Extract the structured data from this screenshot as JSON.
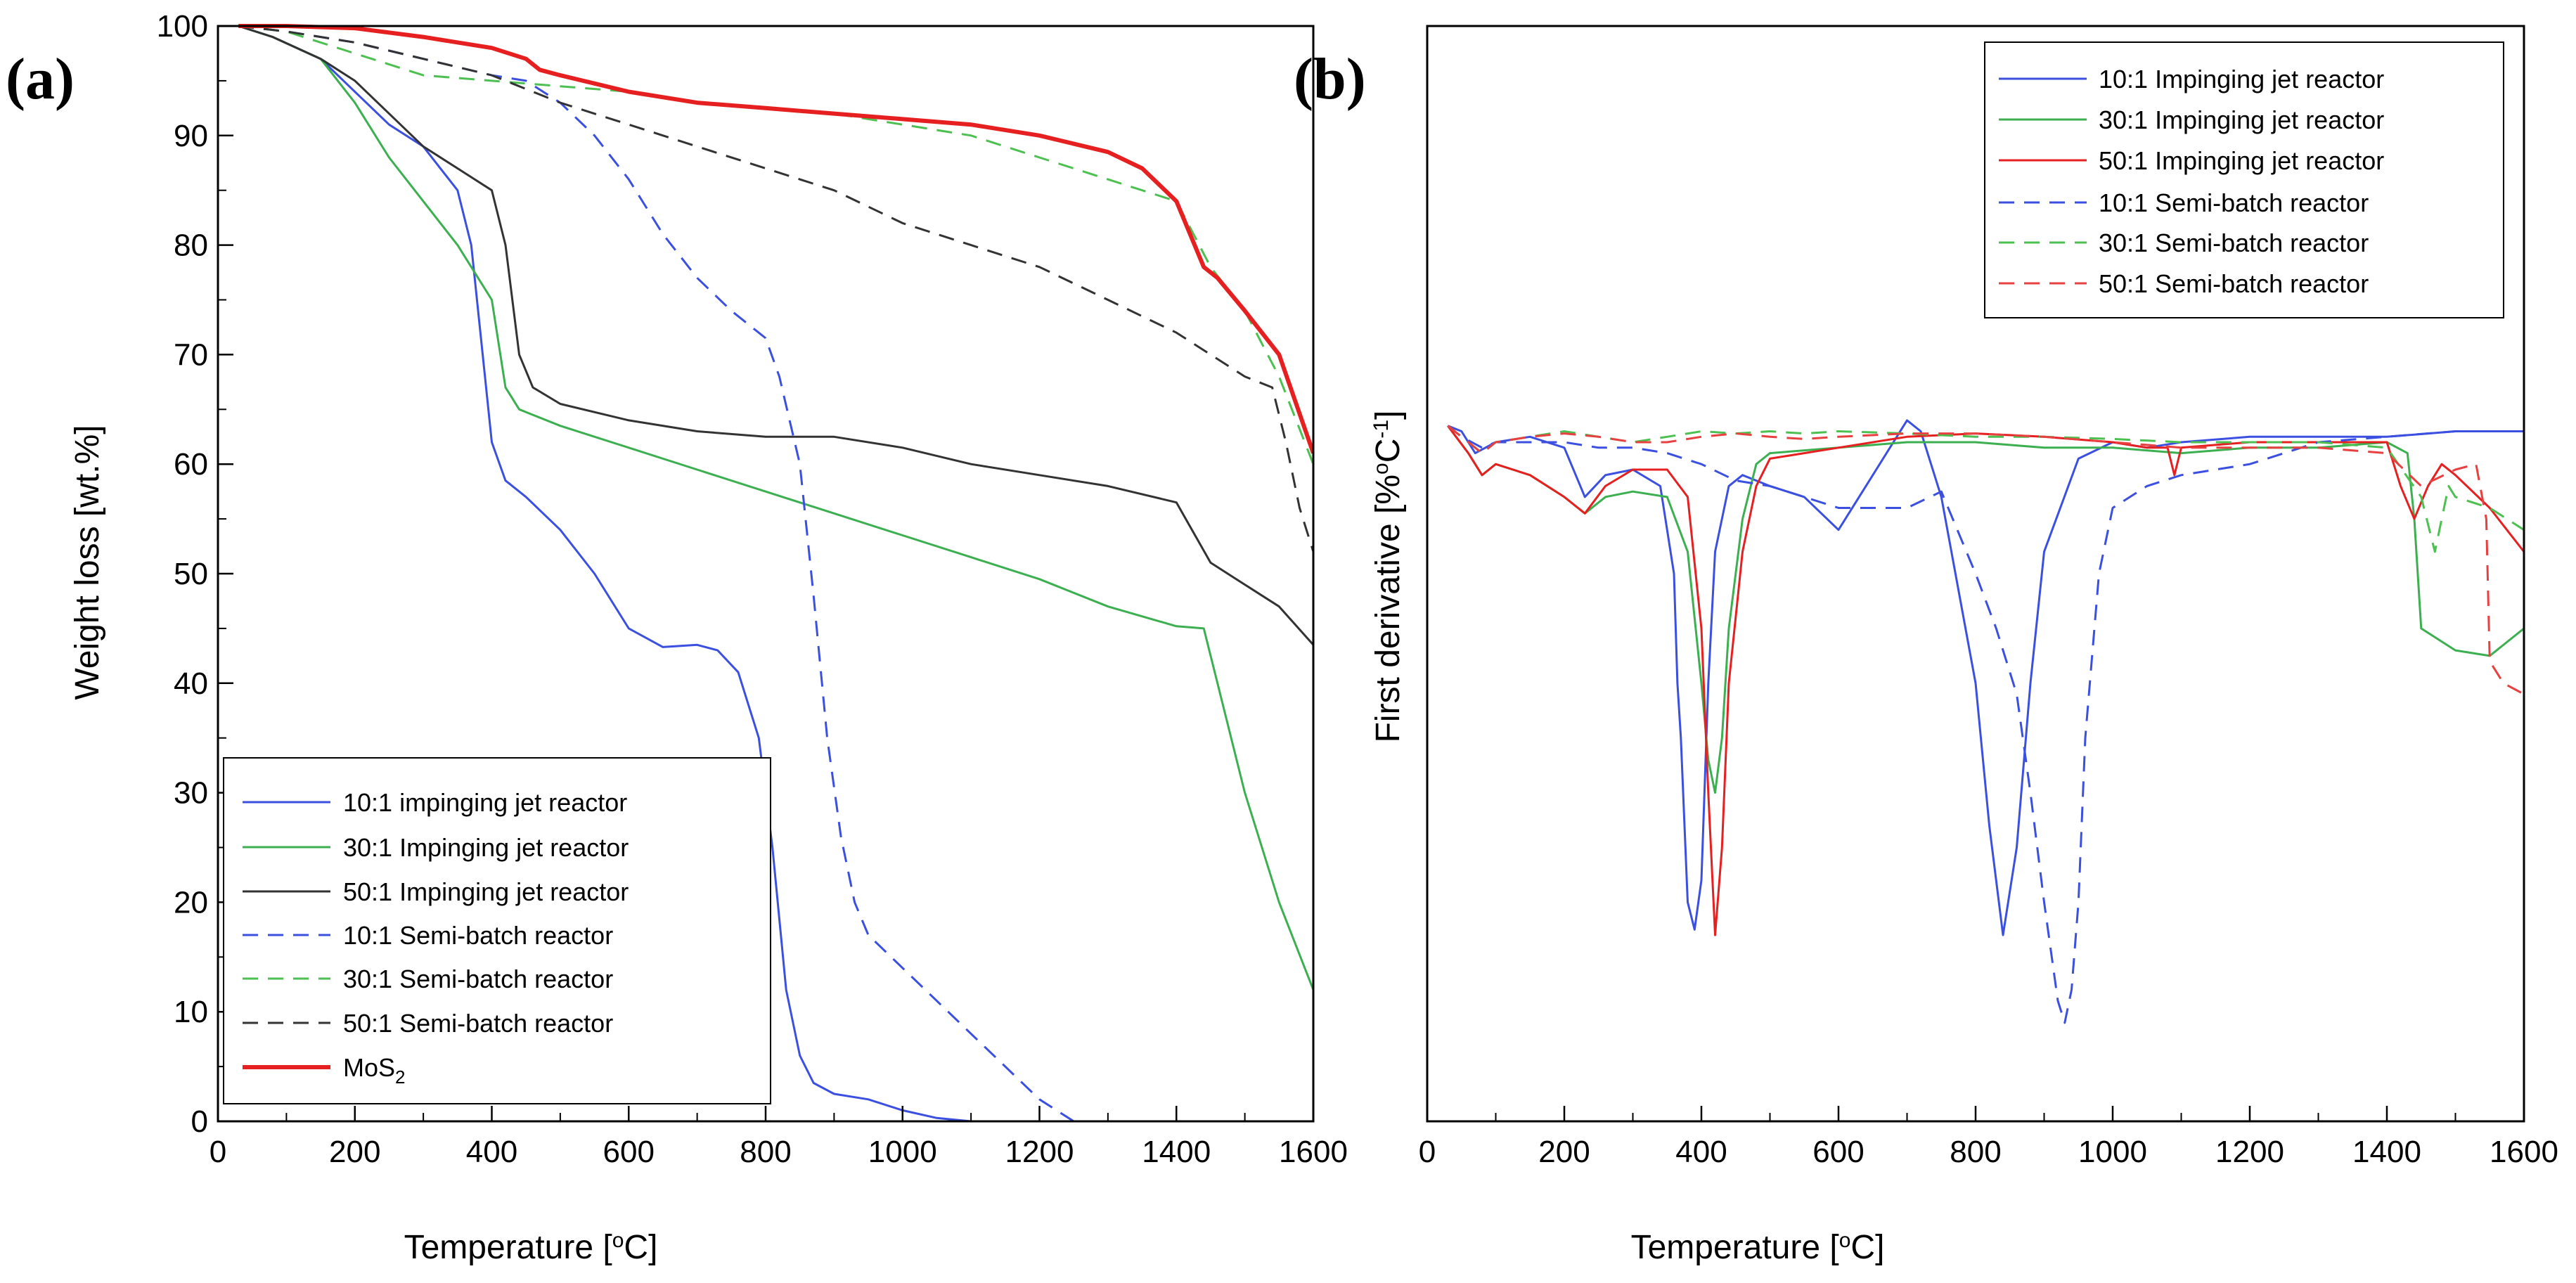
{
  "chart_data": [
    {
      "panel": "(a)",
      "type": "line",
      "title": "",
      "xlabel": "Temperature [",
      "xlabel_sup": "o",
      "xlabel_end": "C]",
      "ylabel": "Weight loss [wt.%]",
      "xlim": [
        0,
        1600
      ],
      "ylim": [
        0,
        100
      ],
      "xticks": [
        0,
        200,
        400,
        600,
        800,
        1000,
        1200,
        1400,
        1600
      ],
      "yticks": [
        0,
        10,
        20,
        30,
        40,
        50,
        60,
        70,
        80,
        90,
        100
      ],
      "legend_position": "bottom-left",
      "series": [
        {
          "name": "10:1 impinging jet reactor",
          "color": "#3b4fe0",
          "dash": "solid",
          "x": [
            30,
            80,
            150,
            200,
            250,
            300,
            350,
            370,
            390,
            400,
            420,
            450,
            500,
            550,
            600,
            650,
            700,
            730,
            760,
            790,
            810,
            830,
            850,
            870,
            900,
            950,
            1000,
            1050,
            1100,
            1200,
            1300,
            1400,
            1500,
            1600
          ],
          "y": [
            100,
            99,
            97,
            94,
            91,
            89,
            85,
            80,
            68,
            62,
            58.5,
            57,
            54,
            50,
            45,
            43.3,
            43.5,
            43,
            41,
            35,
            25,
            12,
            6,
            3.5,
            2.5,
            2,
            1,
            0.3,
            0,
            0,
            0,
            0,
            0,
            0
          ]
        },
        {
          "name": "30:1 Impinging jet reactor",
          "color": "#3cb050",
          "dash": "solid",
          "x": [
            30,
            80,
            150,
            200,
            250,
            300,
            350,
            400,
            420,
            440,
            460,
            500,
            600,
            700,
            800,
            900,
            1000,
            1100,
            1200,
            1300,
            1400,
            1440,
            1460,
            1500,
            1550,
            1600
          ],
          "y": [
            100,
            99,
            97,
            93,
            88,
            84,
            80,
            75,
            67,
            65,
            64.5,
            63.5,
            61.5,
            59.5,
            57.5,
            55.5,
            53.5,
            51.5,
            49.5,
            47,
            45.2,
            45,
            40,
            30,
            20,
            12
          ]
        },
        {
          "name": "50:1 Impinging jet reactor",
          "color": "#333333",
          "dash": "solid",
          "x": [
            30,
            80,
            150,
            200,
            250,
            300,
            350,
            400,
            420,
            440,
            460,
            500,
            600,
            700,
            800,
            900,
            1000,
            1100,
            1200,
            1300,
            1400,
            1450,
            1500,
            1550,
            1600
          ],
          "y": [
            100,
            99,
            97,
            95,
            92,
            89,
            87,
            85,
            80,
            70,
            67,
            65.5,
            64,
            63,
            62.5,
            62.5,
            61.5,
            60,
            59,
            58,
            56.5,
            51,
            49,
            47,
            43.5
          ]
        },
        {
          "name": "10:1 Semi-batch reactor",
          "color": "#3b4fe0",
          "dash": "dashed",
          "x": [
            30,
            100,
            200,
            300,
            400,
            450,
            500,
            550,
            600,
            650,
            700,
            750,
            800,
            820,
            850,
            870,
            890,
            910,
            930,
            950,
            1000,
            1050,
            1100,
            1150,
            1200,
            1250,
            1300,
            1400,
            1500,
            1600
          ],
          "y": [
            100,
            99.5,
            98.5,
            97,
            95.5,
            95,
            93,
            90,
            86,
            81,
            77,
            74,
            71.5,
            68,
            60,
            48,
            35,
            26,
            20,
            17,
            14,
            11,
            8,
            5,
            2,
            0,
            0,
            0,
            0,
            0
          ]
        },
        {
          "name": "30:1 Semi-batch reactor",
          "color": "#4cc050",
          "dash": "dashed",
          "x": [
            30,
            100,
            200,
            300,
            400,
            500,
            600,
            700,
            800,
            900,
            1000,
            1100,
            1200,
            1300,
            1400,
            1450,
            1500,
            1550,
            1600
          ],
          "y": [
            100,
            99.5,
            97.5,
            95.5,
            95,
            94.5,
            94,
            93,
            92.5,
            92,
            91,
            90,
            88,
            86,
            84,
            78,
            74,
            68,
            60
          ]
        },
        {
          "name": "50:1 Semi-batch reactor",
          "color": "#333333",
          "dash": "dashed",
          "x": [
            30,
            100,
            200,
            300,
            400,
            500,
            600,
            700,
            800,
            900,
            1000,
            1100,
            1200,
            1300,
            1400,
            1450,
            1500,
            1540,
            1560,
            1580,
            1600
          ],
          "y": [
            100,
            99.5,
            98.5,
            97,
            95.5,
            93,
            91,
            89,
            87,
            85,
            82,
            80,
            78,
            75,
            72,
            70,
            68,
            67,
            62,
            56,
            52
          ]
        },
        {
          "name": "MoS2",
          "color": "#e62020",
          "dash": "solid",
          "bold": true,
          "x": [
            30,
            100,
            200,
            300,
            400,
            450,
            470,
            500,
            600,
            700,
            800,
            900,
            1000,
            1100,
            1200,
            1300,
            1350,
            1400,
            1420,
            1440,
            1460,
            1500,
            1550,
            1600
          ],
          "y": [
            100,
            100,
            99.8,
            99,
            98,
            97,
            96,
            95.5,
            94,
            93,
            92.5,
            92,
            91.5,
            91,
            90,
            88.5,
            87,
            84,
            81,
            78,
            77,
            74,
            70,
            61
          ]
        }
      ],
      "legend_labels": {
        "s0": "10:1 impinging jet reactor",
        "s1": "30:1 Impinging jet reactor",
        "s2": "50:1 Impinging jet reactor",
        "s3": "10:1 Semi-batch reactor",
        "s4": "30:1 Semi-batch reactor",
        "s5": "50:1 Semi-batch reactor",
        "s6_main": "MoS",
        "s6_sub": "2"
      }
    },
    {
      "panel": "(b)",
      "type": "line",
      "title": "",
      "xlabel": "Temperature [",
      "xlabel_sup": "o",
      "xlabel_end": "C]",
      "ylabel": "First derivative [%",
      "ylabel_sup1": "o",
      "ylabel_mid": "C",
      "ylabel_sup2": "-1",
      "ylabel_end": "]",
      "xlim": [
        0,
        1600
      ],
      "ylim": [
        0,
        100
      ],
      "xticks": [
        0,
        200,
        400,
        600,
        800,
        1000,
        1200,
        1400,
        1600
      ],
      "yticks": [],
      "legend_position": "top-right",
      "series": [
        {
          "name": "10:1 Impinging jet reactor",
          "color": "#3b4fe0",
          "dash": "solid",
          "x": [
            30,
            50,
            70,
            100,
            150,
            200,
            230,
            260,
            300,
            340,
            360,
            365,
            370,
            380,
            390,
            400,
            410,
            420,
            440,
            460,
            480,
            500,
            550,
            600,
            650,
            700,
            720,
            750,
            800,
            820,
            840,
            860,
            880,
            900,
            950,
            1000,
            1050,
            1100,
            1200,
            1300,
            1400,
            1500,
            1600
          ],
          "y": [
            63.5,
            63,
            61,
            62,
            62.5,
            61.5,
            57,
            59,
            59.5,
            58,
            50,
            40,
            35,
            20,
            17.5,
            22,
            40,
            52,
            58,
            59,
            58.5,
            58,
            57,
            54,
            59,
            64,
            63,
            57,
            40,
            27,
            17,
            25,
            40,
            52,
            60.5,
            62,
            61.5,
            62,
            62.5,
            62.5,
            62.5,
            63,
            63
          ]
        },
        {
          "name": "30:1 Impinging jet reactor",
          "color": "#3cb050",
          "dash": "solid",
          "x": [
            30,
            60,
            80,
            100,
            150,
            200,
            230,
            260,
            300,
            350,
            380,
            400,
            410,
            420,
            430,
            440,
            460,
            480,
            500,
            600,
            700,
            800,
            900,
            1000,
            1100,
            1200,
            1300,
            1400,
            1430,
            1440,
            1450,
            1500,
            1550,
            1600
          ],
          "y": [
            63.5,
            61,
            59,
            60,
            59,
            57,
            55.5,
            57,
            57.5,
            57,
            52,
            40,
            33,
            30,
            35,
            45,
            55,
            60,
            61,
            61.5,
            62,
            62,
            61.5,
            61.5,
            61,
            61.5,
            61.5,
            62,
            61,
            55,
            45,
            43,
            42.5,
            45
          ]
        },
        {
          "name": "50:1 Impinging jet reactor",
          "color": "#e62020",
          "dash": "solid",
          "x": [
            30,
            60,
            80,
            100,
            150,
            200,
            230,
            260,
            300,
            350,
            380,
            400,
            410,
            420,
            430,
            440,
            460,
            480,
            500,
            600,
            700,
            800,
            900,
            1000,
            1050,
            1080,
            1090,
            1100,
            1200,
            1300,
            1400,
            1420,
            1440,
            1460,
            1480,
            1500,
            1550,
            1600
          ],
          "y": [
            63.5,
            61,
            59,
            60,
            59,
            57,
            55.5,
            58,
            59.5,
            59.5,
            57,
            45,
            30,
            17,
            25,
            40,
            52,
            58,
            60.5,
            61.5,
            62.5,
            62.8,
            62.5,
            62,
            61.5,
            61.5,
            59,
            61.5,
            62,
            62,
            62,
            58,
            55,
            58,
            60,
            59,
            56,
            52
          ]
        },
        {
          "name": "10:1 Semi-batch reactor",
          "color": "#3b4fe0",
          "dash": "dashed",
          "x": [
            30,
            50,
            80,
            100,
            150,
            200,
            250,
            300,
            350,
            400,
            450,
            500,
            550,
            600,
            700,
            750,
            800,
            830,
            860,
            880,
            900,
            920,
            930,
            940,
            950,
            960,
            980,
            1000,
            1050,
            1100,
            1150,
            1200,
            1250,
            1300,
            1400,
            1500,
            1600
          ],
          "y": [
            63.5,
            62.5,
            61.5,
            62,
            62,
            62,
            61.5,
            61.5,
            61,
            60,
            58.5,
            58,
            57,
            56,
            56,
            57.5,
            50,
            45,
            39,
            30,
            20,
            11,
            9,
            12,
            20,
            35,
            50,
            56,
            58,
            59,
            59.5,
            60,
            61,
            62,
            62.5,
            63,
            63
          ]
        },
        {
          "name": "30:1 Semi-batch reactor",
          "color": "#4cc050",
          "dash": "dashed",
          "x": [
            30,
            60,
            80,
            100,
            150,
            200,
            250,
            300,
            350,
            400,
            450,
            500,
            550,
            600,
            700,
            800,
            900,
            1000,
            1100,
            1200,
            1300,
            1400,
            1450,
            1470,
            1480,
            1490,
            1500,
            1550,
            1600
          ],
          "y": [
            63.5,
            62,
            61,
            62,
            62.5,
            63,
            62.5,
            62,
            62.5,
            63,
            62.8,
            63,
            62.8,
            63,
            62.8,
            62.5,
            62.5,
            62.3,
            62,
            62,
            62,
            61.5,
            57,
            52,
            55,
            58,
            57,
            56,
            54
          ]
        },
        {
          "name": "50:1 Semi-batch reactor",
          "color": "#e84040",
          "dash": "dashed",
          "x": [
            30,
            60,
            80,
            100,
            150,
            200,
            250,
            300,
            350,
            400,
            450,
            500,
            550,
            600,
            700,
            800,
            900,
            1000,
            1100,
            1200,
            1300,
            1400,
            1450,
            1500,
            1530,
            1545,
            1550,
            1570,
            1600
          ],
          "y": [
            63.5,
            62,
            61,
            62,
            62.5,
            62.8,
            62.5,
            62,
            62,
            62.5,
            62.8,
            62.5,
            62.3,
            62.5,
            62.8,
            62.8,
            62.5,
            62,
            61.5,
            61.5,
            61.5,
            61,
            58,
            59.5,
            60,
            55,
            42,
            40,
            39
          ]
        }
      ],
      "legend_labels": {
        "s0": "10:1 Impinging jet reactor",
        "s1": "30:1 Impinging jet reactor",
        "s2": "50:1 Impinging jet reactor",
        "s3": "10:1 Semi-batch reactor",
        "s4": "30:1 Semi-batch reactor",
        "s5": "50:1 Semi-batch reactor"
      }
    }
  ]
}
